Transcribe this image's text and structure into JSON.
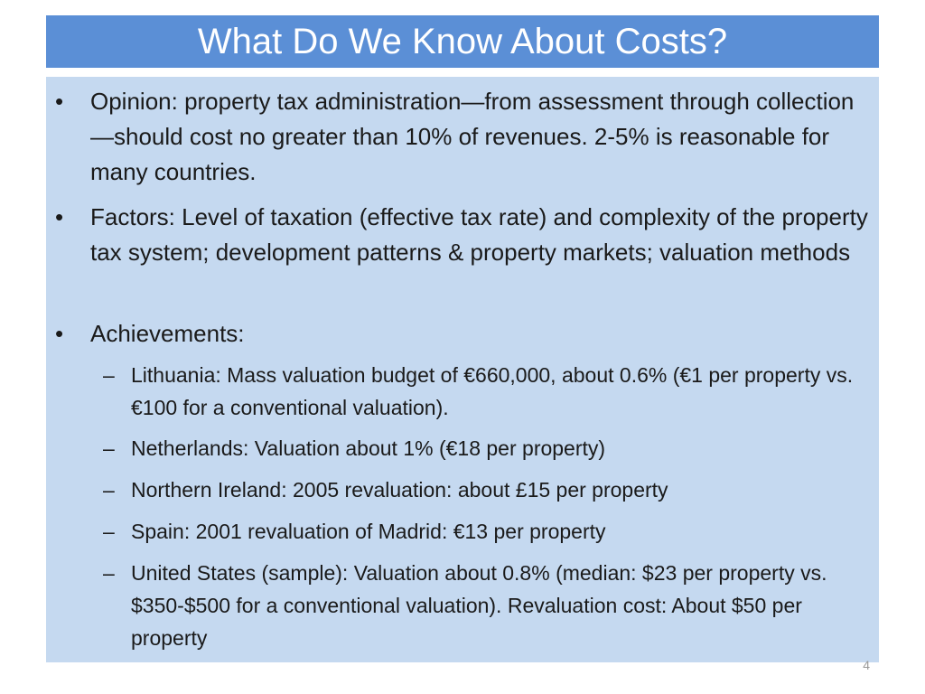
{
  "slide": {
    "title": "What Do We Know About Costs?",
    "bullets": [
      "Opinion: property tax administration—from assessment through collection—should cost no greater than 10% of revenues. 2-5% is reasonable for many countries.",
      "Factors: Level of taxation (effective tax rate) and complexity of the property tax system; development patterns & property markets; valuation methods",
      "Achievements:"
    ],
    "sub_bullets": [
      "Lithuania: Mass valuation budget of €660,000, about 0.6% (€1 per property vs. €100 for a conventional valuation).",
      "Netherlands: Valuation about 1% (€18 per property)",
      "Northern Ireland: 2005 revaluation: about £15 per property",
      "Spain: 2001 revaluation of Madrid: €13 per property",
      "United States (sample): Valuation about 0.8% (median: $23 per property vs. $350-$500 for a conventional valuation). Revaluation cost: About $50 per property"
    ],
    "bullet_symbol": "•",
    "dash_symbol": "–",
    "slide_number": "4"
  }
}
